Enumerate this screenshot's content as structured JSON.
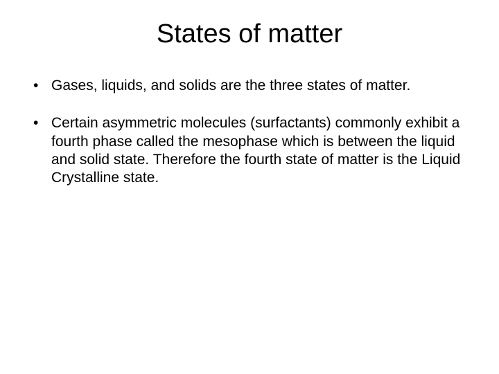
{
  "slide": {
    "title": "States of matter",
    "title_fontsize": 38,
    "bullets": [
      "Gases, liquids, and solids are the three states of matter.",
      "Certain asymmetric molecules (surfactants) commonly exhibit a fourth phase called the mesophase which is between the liquid and solid state. Therefore the fourth state of matter is the Liquid Crystalline state."
    ],
    "bullet_fontsize": 21,
    "text_color": "#000000",
    "background_color": "#ffffff"
  }
}
